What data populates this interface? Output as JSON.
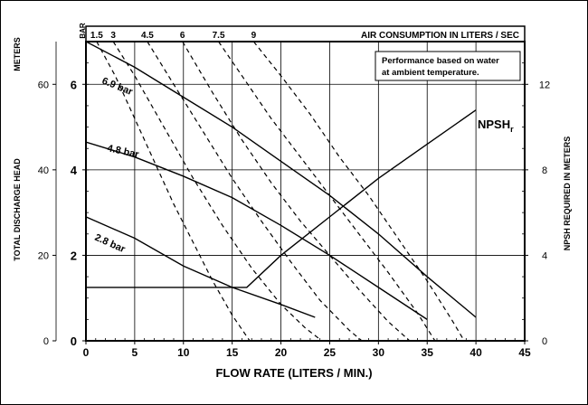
{
  "chart_data": {
    "type": "line",
    "xlabel": "FLOW RATE (LITERS / MIN.)",
    "x_ticks": [
      0,
      5,
      10,
      15,
      20,
      25,
      30,
      35,
      40,
      45
    ],
    "xlim": [
      0,
      45
    ],
    "y_left_meters": {
      "label": "METERS",
      "ticks": [
        0,
        20,
        40,
        60
      ],
      "lim": [
        0,
        70
      ]
    },
    "y_left_bar": {
      "label": "BAR",
      "ticks": [
        0,
        2,
        4,
        6
      ],
      "lim": [
        0,
        7
      ]
    },
    "ylabel": "TOTAL DISCHARGE HEAD",
    "y_right": {
      "label": "NPSH REQUIRED IN METERS",
      "ticks": [
        0,
        4,
        8,
        12
      ],
      "lim": [
        0,
        14
      ]
    },
    "top_axis": {
      "label": "AIR CONSUMPTION IN LITERS / SEC",
      "ticks": [
        {
          "label": "1.5",
          "x": 1.1
        },
        {
          "label": "3",
          "x": 2.8
        },
        {
          "label": "4.5",
          "x": 6.3
        },
        {
          "label": "6",
          "x": 9.9
        },
        {
          "label": "7.5",
          "x": 13.6
        },
        {
          "label": "9",
          "x": 17.2
        }
      ]
    },
    "annotation": "Performance based on water at ambient temperature.",
    "series": [
      {
        "name": "6.9 bar",
        "x": [
          0,
          5,
          10,
          15,
          20,
          25,
          30,
          35,
          40
        ],
        "y": [
          70,
          64,
          57,
          50,
          42,
          34,
          25,
          15,
          5.5
        ]
      },
      {
        "name": "4.8 bar",
        "x": [
          0,
          5,
          10,
          15,
          20,
          25,
          30,
          35
        ],
        "y": [
          46.5,
          43,
          38.5,
          33.5,
          27,
          20,
          12.5,
          5
        ]
      },
      {
        "name": "2.8 bar",
        "x": [
          0,
          5,
          10,
          15,
          20,
          23.5
        ],
        "y": [
          29,
          24,
          17.5,
          12.5,
          8.5,
          5.5
        ]
      },
      {
        "name": "NPSHr",
        "x": [
          0,
          16.5,
          20,
          25,
          30,
          35,
          40
        ],
        "y_right": [
          2.5,
          2.5,
          4,
          5.8,
          7.6,
          9.2,
          10.8
        ]
      }
    ],
    "air_curves": [
      {
        "label": "1.5",
        "x": [
          1.1,
          3,
          5,
          7,
          9,
          11,
          13,
          15,
          16.8
        ],
        "y": [
          70,
          62,
          52,
          42,
          32,
          23,
          14,
          6,
          0
        ]
      },
      {
        "label": "3",
        "x": [
          2.8,
          5,
          8,
          11,
          14,
          17,
          20,
          22.5,
          24.2
        ],
        "y": [
          70,
          62,
          50,
          38,
          27,
          17,
          8.5,
          3,
          0
        ]
      },
      {
        "label": "4.5",
        "x": [
          6.3,
          9,
          12,
          15,
          18,
          21,
          24,
          27,
          28.3
        ],
        "y": [
          70,
          60,
          49,
          38,
          28,
          18.5,
          9.5,
          2.5,
          0
        ]
      },
      {
        "label": "6",
        "x": [
          9.9,
          13,
          16,
          19,
          22,
          25,
          28,
          31,
          33.2
        ],
        "y": [
          70,
          58,
          47,
          37,
          28,
          20,
          12,
          4.5,
          0
        ]
      },
      {
        "label": "7.5",
        "x": [
          13.6,
          16,
          19,
          22,
          25,
          28,
          31,
          34,
          35.8
        ],
        "y": [
          70,
          62,
          52,
          43,
          34,
          25,
          16,
          6.5,
          0
        ]
      },
      {
        "label": "9",
        "x": [
          17.2,
          20,
          23,
          26,
          29,
          32,
          35,
          37.5,
          38.8
        ],
        "y": [
          70,
          62,
          53,
          43,
          34,
          24,
          14,
          5,
          0
        ]
      }
    ],
    "grid": true
  }
}
